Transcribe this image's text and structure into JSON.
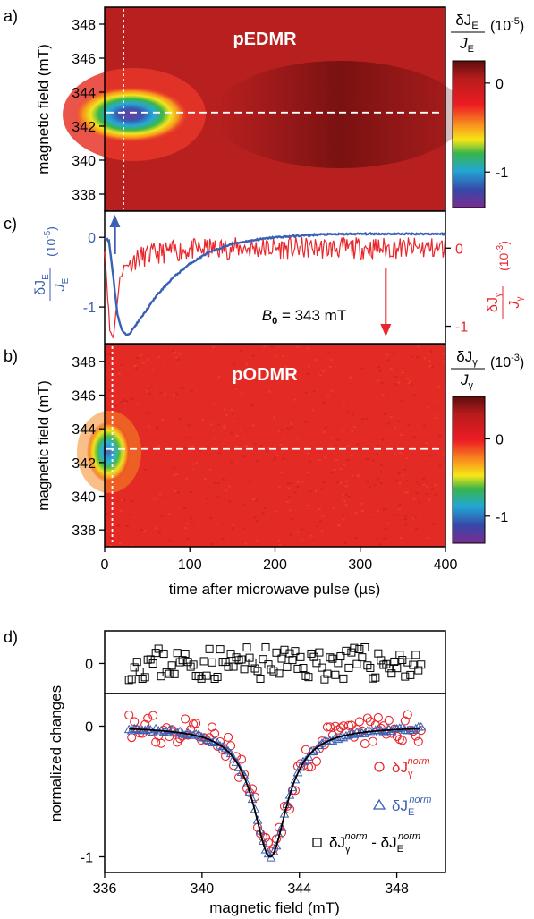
{
  "chart_data": [
    {
      "panel": "a)",
      "type": "heatmap",
      "title": "pEDMR",
      "ylabel": "magnetic field (mT)",
      "xlim": [
        0,
        400
      ],
      "ylim": [
        337,
        349
      ],
      "yticks": [
        338,
        340,
        342,
        344,
        346,
        348
      ],
      "resonance_field": 342.8,
      "marker_time": 22,
      "peak_value": -1.35,
      "peak_time": 22,
      "colorbar": {
        "label_num": "δJ",
        "label_num_sub": "E",
        "label_den": "J",
        "label_den_sub": "E",
        "unit": "(10",
        "unit_exp": "-5",
        "unit_close": ")",
        "range": [
          -1.4,
          0.25
        ],
        "ticks": [
          {
            "value": 0,
            "label": "0"
          },
          {
            "value": -1,
            "label": "-1"
          }
        ]
      }
    },
    {
      "panel": "c)",
      "type": "line",
      "annotation_prefix": "B",
      "annotation_sub": "0",
      "annotation_text": " = 343 mT",
      "xlim": [
        0,
        400
      ],
      "left_axis": {
        "label_num": "δJ",
        "label_num_sub": "E",
        "label_den": "J",
        "label_den_sub": "E",
        "unit": "(10",
        "unit_exp": "-5",
        "unit_close": ")",
        "ylim": [
          -1.5,
          0.35
        ],
        "ticks": [
          {
            "value": 0,
            "label": "0"
          },
          {
            "value": -1,
            "label": "-1"
          }
        ]
      },
      "right_axis": {
        "label_num": "δJ",
        "label_num_sub": "γ",
        "label_den": "J",
        "label_den_sub": "γ",
        "unit": "(10",
        "unit_exp": "-3",
        "unit_close": ")",
        "ylim": [
          -1.2,
          0.45
        ],
        "ticks": [
          {
            "value": 0,
            "label": "0"
          },
          {
            "value": -1,
            "label": "-1"
          }
        ]
      },
      "series": [
        {
          "color": "#3a5fb4",
          "x": [
            0,
            5,
            10,
            15,
            20,
            25,
            30,
            40,
            50,
            60,
            80,
            100,
            120,
            150,
            180,
            200,
            250,
            300,
            350,
            400
          ],
          "y": [
            0,
            -0.05,
            -0.55,
            -1.1,
            -1.33,
            -1.4,
            -1.37,
            -1.2,
            -1.03,
            -0.85,
            -0.58,
            -0.38,
            -0.23,
            -0.09,
            -0.03,
            0,
            0.04,
            0.05,
            0.05,
            0.05
          ]
        },
        {
          "color": "#e8262b",
          "x": [
            0,
            3,
            6,
            10,
            14,
            18,
            22,
            26,
            30,
            40,
            60,
            80,
            100,
            150,
            200,
            300,
            400
          ],
          "y": [
            0,
            -0.5,
            -1.05,
            -1.15,
            -0.75,
            -0.4,
            -0.25,
            -0.22,
            -0.18,
            -0.12,
            -0.07,
            -0.04,
            -0.02,
            0,
            0,
            0,
            0
          ]
        }
      ],
      "arrows": [
        {
          "axis": "left",
          "x": 12,
          "direction": "up"
        },
        {
          "axis": "right",
          "x": 330,
          "direction": "down"
        }
      ]
    },
    {
      "panel": "b)",
      "type": "heatmap",
      "title": "pODMR",
      "ylabel": "magnetic field (mT)",
      "xlabel": "time after microwave pulse (µs)",
      "xlim": [
        0,
        400
      ],
      "xticks": [
        0,
        100,
        200,
        300,
        400
      ],
      "ylim": [
        337,
        349
      ],
      "yticks": [
        338,
        340,
        342,
        344,
        346,
        348
      ],
      "resonance_field": 342.8,
      "marker_time": 9,
      "peak_value": -1.2,
      "peak_time": 9,
      "colorbar": {
        "label_num": "δJ",
        "label_num_sub": "γ",
        "label_den": "J",
        "label_den_sub": "γ",
        "unit": "(10",
        "unit_exp": "-3",
        "unit_close": ")",
        "range": [
          -1.35,
          0.55
        ],
        "ticks": [
          {
            "value": 0,
            "label": "0"
          },
          {
            "value": -1,
            "label": "-1"
          }
        ]
      }
    },
    {
      "panel": "d)",
      "type": "scatter",
      "ylabel": "normalized changes",
      "xlabel": "magnetic field (mT)",
      "xlim": [
        336,
        350
      ],
      "xticks": [
        336,
        340,
        344,
        348
      ],
      "top": {
        "ylim": [
          -0.35,
          0.38
        ],
        "yticks": [
          0
        ],
        "series": [
          {
            "name_main": "δJ",
            "name_sub": "γ",
            "name_sup": "norm",
            "name_mid": " - δJ",
            "name_sub2": "E",
            "name_sup2": "norm",
            "marker": "square",
            "color": "#000000",
            "x_range": [
              337,
              349
            ],
            "count": 110,
            "center": 0,
            "spread": 0.12
          }
        ]
      },
      "bottom": {
        "ylim": [
          -1.12,
          0.25
        ],
        "yticks": [
          0,
          -1
        ],
        "series": [
          {
            "name_main": "δJ",
            "name_sub": "γ",
            "name_sup": "norm",
            "marker": "circle",
            "color": "#e8262b",
            "x_range": [
              337,
              349
            ],
            "count": 110,
            "center": 342.8,
            "width": 0.85,
            "amplitude": -1,
            "spread": 0.07
          },
          {
            "name_main": "δJ",
            "name_sub": "E",
            "name_sup": "norm",
            "marker": "triangle",
            "color": "#3a5fb4",
            "x_range": [
              337,
              349
            ],
            "count": 110,
            "center": 342.8,
            "width": 0.85,
            "amplitude": -1,
            "spread": 0.015
          }
        ],
        "fit": {
          "color": "#000000",
          "center": 342.8,
          "width": 0.85,
          "amplitude": -1
        }
      }
    }
  ]
}
